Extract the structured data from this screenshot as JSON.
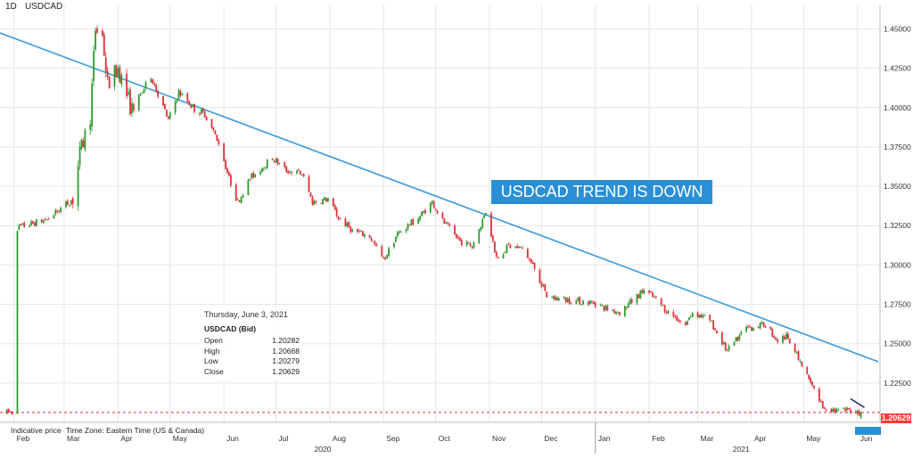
{
  "header": {
    "interval": "1D",
    "symbol": "USDCAD"
  },
  "annotation": {
    "banner": "USDCAD TREND IS DOWN"
  },
  "tooltip": {
    "date": "Thursday, June 3, 2021",
    "instrument": "USDCAD (Bid)",
    "rows": [
      {
        "label": "Open",
        "value": "1.20282"
      },
      {
        "label": "High",
        "value": "1.20668"
      },
      {
        "label": "Low",
        "value": "1.20279"
      },
      {
        "label": "Close",
        "value": "1.20629"
      }
    ]
  },
  "footer": {
    "indicative": "Indicative price",
    "timezone": "Time Zone: Eastern Time (US & Canada)"
  },
  "last_price_label": "1.20629",
  "colors": {
    "up": "#2e9b2e",
    "down": "#e0303a",
    "trendline": "#3a9ad9",
    "banner": "#2b8fd6",
    "price_line": "#e0303a",
    "grid": "#e6e6e6"
  },
  "chart_data": {
    "type": "candlestick",
    "title": "USDCAD",
    "x_months": [
      "Feb",
      "Mar",
      "Apr",
      "May",
      "Jun",
      "Jul",
      "Aug",
      "Sep",
      "Oct",
      "Nov",
      "Dec",
      "Jan",
      "Feb",
      "Mar",
      "Apr",
      "May",
      "Jun"
    ],
    "x_years": [
      "2020",
      "2021"
    ],
    "y_ticks": [
      "1.22500",
      "1.25000",
      "1.27500",
      "1.30000",
      "1.32500",
      "1.35000",
      "1.37500",
      "1.40000",
      "1.42500",
      "1.45000"
    ],
    "ylim": [
      1.2,
      1.465
    ],
    "close_path": [
      [
        "2020-02-01",
        1.323
      ],
      [
        "2020-02-20",
        1.329
      ],
      [
        "2020-03-06",
        1.342
      ],
      [
        "2020-03-10",
        1.37
      ],
      [
        "2020-03-16",
        1.395
      ],
      [
        "2020-03-19",
        1.45
      ],
      [
        "2020-03-23",
        1.445
      ],
      [
        "2020-03-26",
        1.415
      ],
      [
        "2020-04-01",
        1.425
      ],
      [
        "2020-04-09",
        1.398
      ],
      [
        "2020-04-15",
        1.41
      ],
      [
        "2020-04-20",
        1.42
      ],
      [
        "2020-04-30",
        1.392
      ],
      [
        "2020-05-06",
        1.41
      ],
      [
        "2020-05-15",
        1.399
      ],
      [
        "2020-05-21",
        1.396
      ],
      [
        "2020-05-29",
        1.378
      ],
      [
        "2020-06-04",
        1.355
      ],
      [
        "2020-06-09",
        1.34
      ],
      [
        "2020-06-16",
        1.355
      ],
      [
        "2020-06-29",
        1.368
      ],
      [
        "2020-07-07",
        1.36
      ],
      [
        "2020-07-16",
        1.358
      ],
      [
        "2020-07-22",
        1.34
      ],
      [
        "2020-07-31",
        1.342
      ],
      [
        "2020-08-06",
        1.33
      ],
      [
        "2020-08-14",
        1.322
      ],
      [
        "2020-08-24",
        1.318
      ],
      [
        "2020-09-01",
        1.303
      ],
      [
        "2020-09-09",
        1.32
      ],
      [
        "2020-09-21",
        1.33
      ],
      [
        "2020-09-29",
        1.34
      ],
      [
        "2020-10-05",
        1.328
      ],
      [
        "2020-10-15",
        1.315
      ],
      [
        "2020-10-22",
        1.312
      ],
      [
        "2020-10-30",
        1.334
      ],
      [
        "2020-11-05",
        1.305
      ],
      [
        "2020-11-12",
        1.312
      ],
      [
        "2020-11-20",
        1.31
      ],
      [
        "2020-11-27",
        1.298
      ],
      [
        "2020-12-04",
        1.28
      ],
      [
        "2020-12-14",
        1.278
      ],
      [
        "2020-12-31",
        1.276
      ],
      [
        "2021-01-08",
        1.272
      ],
      [
        "2021-01-15",
        1.27
      ],
      [
        "2021-01-29",
        1.284
      ],
      [
        "2021-02-05",
        1.278
      ],
      [
        "2021-02-12",
        1.27
      ],
      [
        "2021-02-22",
        1.262
      ],
      [
        "2021-02-26",
        1.27
      ],
      [
        "2021-03-08",
        1.265
      ],
      [
        "2021-03-18",
        1.245
      ],
      [
        "2021-03-29",
        1.26
      ],
      [
        "2021-04-09",
        1.262
      ],
      [
        "2021-04-16",
        1.252
      ],
      [
        "2021-04-22",
        1.255
      ],
      [
        "2021-04-28",
        1.24
      ],
      [
        "2021-05-05",
        1.225
      ],
      [
        "2021-05-12",
        1.21
      ],
      [
        "2021-05-21",
        1.207
      ],
      [
        "2021-05-28",
        1.208
      ],
      [
        "2021-06-03",
        1.2063
      ]
    ],
    "last_candle": {
      "date": "2021-06-03",
      "open": 1.20282,
      "high": 1.20668,
      "low": 1.20279,
      "close": 1.20629
    },
    "trendline": {
      "start": [
        "2020-01-13",
        1.452
      ],
      "end": [
        "2021-06-13",
        1.2385
      ]
    },
    "current_price": 1.20629
  }
}
